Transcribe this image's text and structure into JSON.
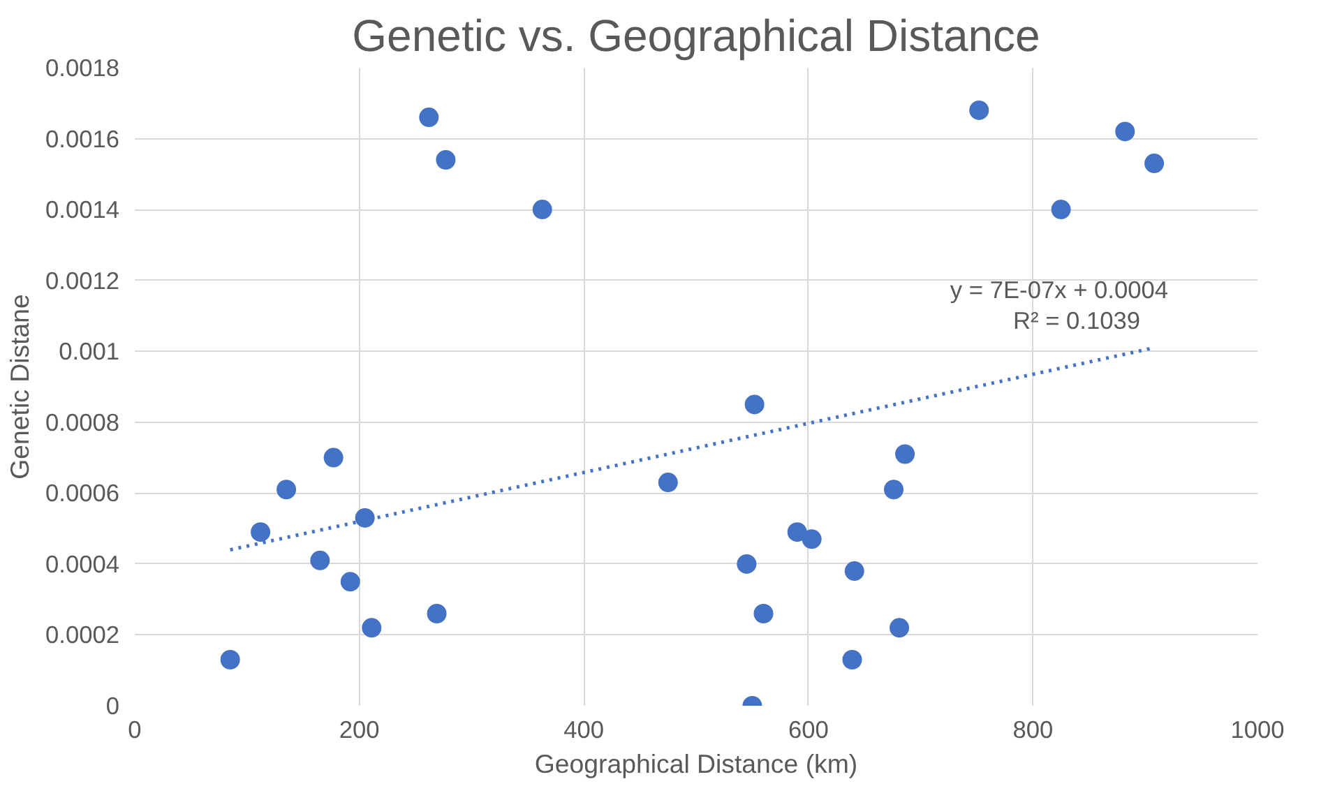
{
  "chart_data": {
    "type": "scatter",
    "title": "Genetic vs. Geographical Distance",
    "xlabel": "Geographical Distance (km)",
    "ylabel": "Genetic Distane",
    "xlim": [
      0,
      1000
    ],
    "xticks": [
      0,
      200,
      400,
      600,
      800,
      1000
    ],
    "ylim": [
      0,
      0.0018
    ],
    "yticks": [
      0,
      0.0002,
      0.0004,
      0.0006,
      0.0008,
      0.001,
      0.0012,
      0.0014,
      0.0016,
      0.0018
    ],
    "grid": true,
    "marker": "circle",
    "series": [
      {
        "color": "#4472c4",
        "x": [
          85,
          112,
          135,
          165,
          177,
          192,
          205,
          211,
          262,
          269,
          277,
          363,
          475,
          545,
          552,
          550,
          560,
          590,
          603,
          639,
          641,
          676,
          681,
          686,
          752,
          825,
          882,
          908
        ],
        "values": [
          0.00013,
          0.00049,
          0.00061,
          0.00041,
          0.0007,
          0.00035,
          0.00053,
          0.00022,
          0.00166,
          0.00026,
          0.00154,
          0.0014,
          0.00063,
          0.0004,
          0.00085,
          0.0,
          0.00026,
          0.00049,
          0.00047,
          0.00013,
          0.00038,
          0.00061,
          0.00022,
          0.00071,
          0.00168,
          0.0014,
          0.00162,
          0.00153
        ]
      },
      {
        "type": "line",
        "color": "#4472c4",
        "line_style": "dotted",
        "marker": "none",
        "x": [
          85,
          908
        ],
        "values": [
          0.00044,
          0.00101
        ]
      }
    ],
    "annotations": [
      "y = 7E-07x + 0.0004",
      "R² = 0.1039"
    ]
  }
}
